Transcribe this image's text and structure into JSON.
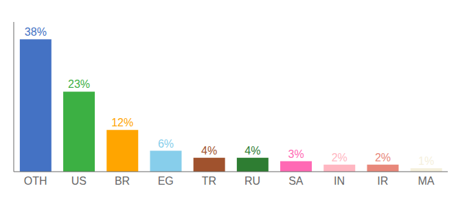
{
  "chart_data": {
    "type": "bar",
    "categories": [
      "OTH",
      "US",
      "BR",
      "EG",
      "TR",
      "RU",
      "SA",
      "IN",
      "IR",
      "MA"
    ],
    "values": [
      38,
      23,
      12,
      6,
      4,
      4,
      3,
      2,
      2,
      1
    ],
    "value_labels": [
      "38%",
      "23%",
      "12%",
      "6%",
      "4%",
      "4%",
      "3%",
      "2%",
      "2%",
      "1%"
    ],
    "colors": [
      "#4472C4",
      "#3CB043",
      "#FFA500",
      "#87CEEB",
      "#A0522D",
      "#2E7D32",
      "#FF69B4",
      "#FFB6C1",
      "#E8877A",
      "#F5F0DC"
    ],
    "ylim": [
      0,
      43
    ],
    "data_labels": true,
    "tick_labels": "x",
    "grid": false
  }
}
